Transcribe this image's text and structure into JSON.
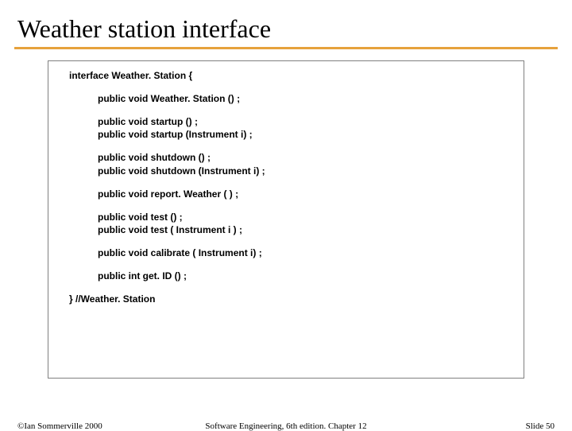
{
  "title": "Weather station interface",
  "code": {
    "l0": "interface Weather. Station {",
    "l1": "public void Weather. Station () ;",
    "l2": "public void startup () ;",
    "l3": "public void startup (Instrument i) ;",
    "l4": "public void shutdown () ;",
    "l5": "public void shutdown (Instrument i) ;",
    "l6": "public void report. Weather ( ) ;",
    "l7": "public void test () ;",
    "l8": "public void test ( Instrument i ) ;",
    "l9": "public void calibrate ( Instrument i) ;",
    "l10": "public int get. ID () ;",
    "l11": "} //Weather. Station"
  },
  "footer": {
    "left": "©Ian Sommerville 2000",
    "center": "Software Engineering, 6th edition. Chapter 12",
    "right": "Slide 50"
  },
  "colors": {
    "rule": "#e6a23c",
    "box_border": "#808080",
    "text": "#000000",
    "background": "#ffffff"
  }
}
